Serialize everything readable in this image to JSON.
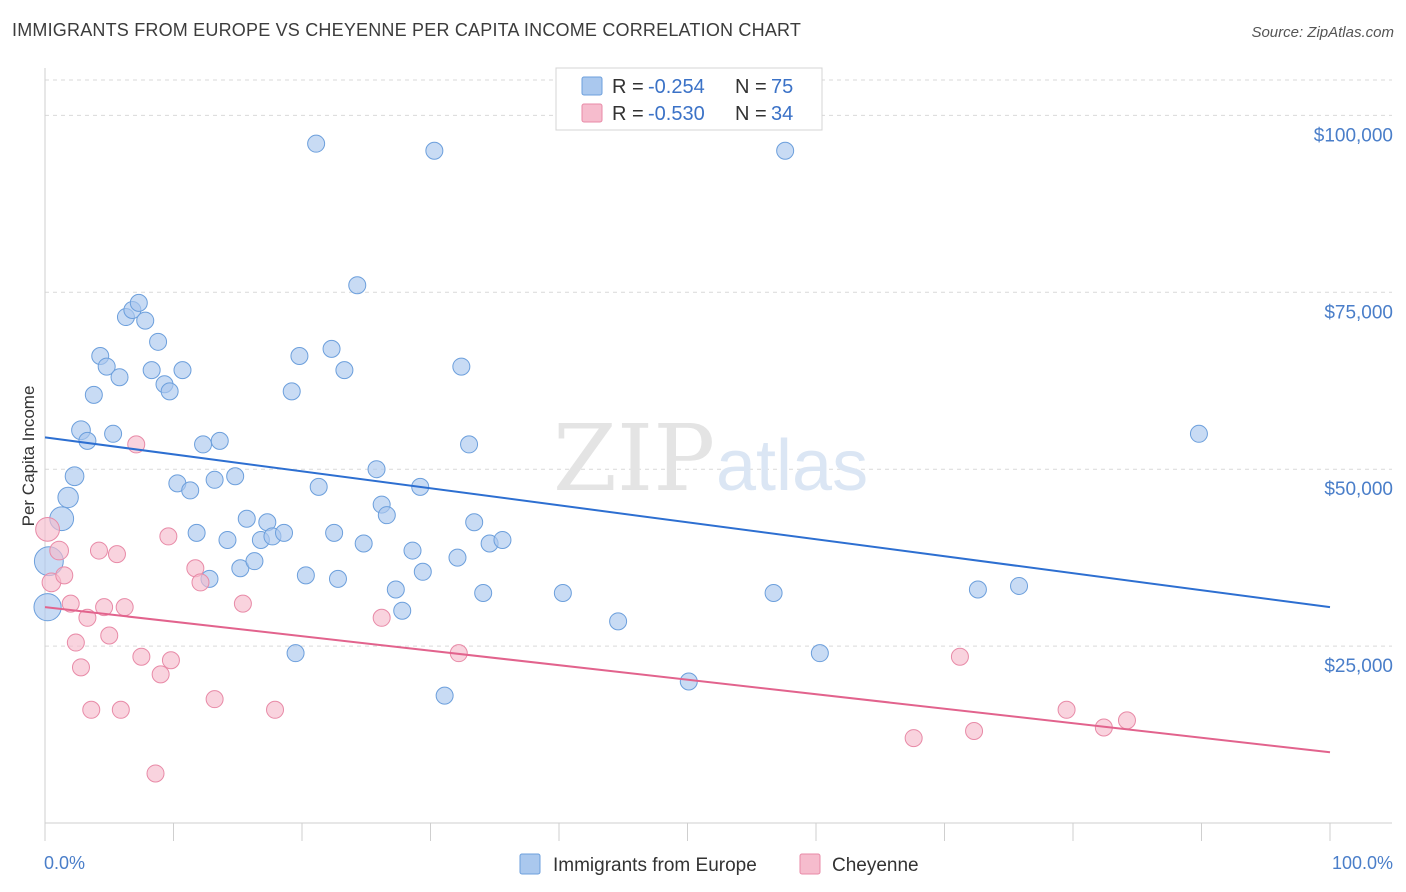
{
  "header": {
    "title": "IMMIGRANTS FROM EUROPE VS CHEYENNE PER CAPITA INCOME CORRELATION CHART",
    "source": "Source: ZipAtlas.com"
  },
  "watermark": {
    "zip": "ZIP",
    "atlas": "atlas"
  },
  "colors": {
    "blue_fill": "#aac8ee",
    "blue_stroke": "#6c9fdc",
    "blue_line": "#2d6fd1",
    "pink_fill": "#f6bccd",
    "pink_stroke": "#e88aa7",
    "pink_line": "#e2638d",
    "grid": "#d9d9d9",
    "axis_text": "#4a7ec9"
  },
  "legend_top": {
    "rows": [
      {
        "r_label": "R = ",
        "r_value": "-0.254",
        "n_label": "N = ",
        "n_value": "75"
      },
      {
        "r_label": "R = ",
        "r_value": "-0.530",
        "n_label": "N = ",
        "n_value": "34"
      }
    ]
  },
  "chart_data": {
    "type": "scatter",
    "title": "IMMIGRANTS FROM EUROPE VS CHEYENNE PER CAPITA INCOME CORRELATION CHART",
    "xlabel": "",
    "ylabel": "Per Capita Income",
    "xlim": [
      0,
      100
    ],
    "ylim": [
      0,
      105000
    ],
    "x_tick_labels": [
      "0.0%",
      "100.0%"
    ],
    "y_ticks": [
      25000,
      50000,
      75000,
      100000
    ],
    "y_tick_labels": [
      "$25,000",
      "$50,000",
      "$75,000",
      "$100,000"
    ],
    "grid": "horizontal dashed",
    "legend_placement": "bottom-center",
    "series": [
      {
        "name": "Immigrants from Europe",
        "color": "#aac8ee",
        "trend": {
          "x": [
            0,
            100
          ],
          "y": [
            54500,
            30500
          ]
        },
        "points": [
          [
            0.2,
            30500,
            1.6
          ],
          [
            0.3,
            37000,
            1.7
          ],
          [
            1.3,
            43000,
            1.4
          ],
          [
            1.8,
            46000,
            1.2
          ],
          [
            2.3,
            49000,
            1.1
          ],
          [
            2.8,
            55500,
            1.1
          ],
          [
            3.3,
            54000,
            1.0
          ],
          [
            3.8,
            60500,
            1.0
          ],
          [
            4.3,
            66000,
            1.0
          ],
          [
            4.8,
            64500,
            1.0
          ],
          [
            5.3,
            55000,
            1.0
          ],
          [
            5.8,
            63000,
            1.0
          ],
          [
            6.3,
            71500,
            1.0
          ],
          [
            6.8,
            72500,
            1.0
          ],
          [
            7.3,
            73500,
            1.0
          ],
          [
            7.8,
            71000,
            1.0
          ],
          [
            8.3,
            64000,
            1.0
          ],
          [
            8.8,
            68000,
            1.0
          ],
          [
            9.3,
            62000,
            1.0
          ],
          [
            9.7,
            61000,
            1.0
          ],
          [
            10.3,
            48000,
            1.0
          ],
          [
            10.7,
            64000,
            1.0
          ],
          [
            11.3,
            47000,
            1.0
          ],
          [
            11.8,
            41000,
            1.0
          ],
          [
            12.3,
            53500,
            1.0
          ],
          [
            12.8,
            34500,
            1.0
          ],
          [
            13.2,
            48500,
            1.0
          ],
          [
            13.6,
            54000,
            1.0
          ],
          [
            14.2,
            40000,
            1.0
          ],
          [
            14.8,
            49000,
            1.0
          ],
          [
            15.2,
            36000,
            1.0
          ],
          [
            15.7,
            43000,
            1.0
          ],
          [
            16.3,
            37000,
            1.0
          ],
          [
            16.8,
            40000,
            1.0
          ],
          [
            17.3,
            42500,
            1.0
          ],
          [
            17.7,
            40500,
            1.0
          ],
          [
            18.6,
            41000,
            1.0
          ],
          [
            19.2,
            61000,
            1.0
          ],
          [
            19.5,
            24000,
            1.0
          ],
          [
            19.8,
            66000,
            1.0
          ],
          [
            20.3,
            35000,
            1.0
          ],
          [
            21.1,
            96000,
            1.0
          ],
          [
            21.3,
            47500,
            1.0
          ],
          [
            22.3,
            67000,
            1.0
          ],
          [
            22.5,
            41000,
            1.0
          ],
          [
            22.8,
            34500,
            1.0
          ],
          [
            23.3,
            64000,
            1.0
          ],
          [
            24.3,
            76000,
            1.0
          ],
          [
            24.8,
            39500,
            1.0
          ],
          [
            25.8,
            50000,
            1.0
          ],
          [
            26.2,
            45000,
            1.0
          ],
          [
            26.6,
            43500,
            1.0
          ],
          [
            27.3,
            33000,
            1.0
          ],
          [
            27.8,
            30000,
            1.0
          ],
          [
            28.6,
            38500,
            1.0
          ],
          [
            29.2,
            47500,
            1.0
          ],
          [
            29.4,
            35500,
            1.0
          ],
          [
            30.3,
            95000,
            1.0
          ],
          [
            31.1,
            18000,
            1.0
          ],
          [
            32.1,
            37500,
            1.0
          ],
          [
            32.4,
            64500,
            1.0
          ],
          [
            33.0,
            53500,
            1.0
          ],
          [
            33.4,
            42500,
            1.0
          ],
          [
            34.1,
            32500,
            1.0
          ],
          [
            34.6,
            39500,
            1.0
          ],
          [
            35.6,
            40000,
            1.0
          ],
          [
            40.3,
            32500,
            1.0
          ],
          [
            44.6,
            28500,
            1.0
          ],
          [
            50.1,
            20000,
            1.0
          ],
          [
            56.7,
            32500,
            1.0
          ],
          [
            60.3,
            24000,
            1.0
          ],
          [
            72.6,
            33000,
            1.0
          ],
          [
            75.8,
            33500,
            1.0
          ],
          [
            57.6,
            95000,
            1.0
          ],
          [
            89.8,
            55000,
            1.0
          ]
        ]
      },
      {
        "name": "Cheyenne",
        "color": "#f6bccd",
        "trend": {
          "x": [
            0,
            100
          ],
          "y": [
            30500,
            10000
          ]
        },
        "points": [
          [
            0.2,
            41500,
            1.4
          ],
          [
            0.5,
            34000,
            1.1
          ],
          [
            1.1,
            38500,
            1.1
          ],
          [
            1.5,
            35000,
            1.0
          ],
          [
            2.0,
            31000,
            1.0
          ],
          [
            2.4,
            25500,
            1.0
          ],
          [
            2.8,
            22000,
            1.0
          ],
          [
            3.3,
            29000,
            1.0
          ],
          [
            3.6,
            16000,
            1.0
          ],
          [
            4.2,
            38500,
            1.0
          ],
          [
            4.6,
            30500,
            1.0
          ],
          [
            5.0,
            26500,
            1.0
          ],
          [
            5.6,
            38000,
            1.0
          ],
          [
            5.9,
            16000,
            1.0
          ],
          [
            6.2,
            30500,
            1.0
          ],
          [
            7.1,
            53500,
            1.0
          ],
          [
            7.5,
            23500,
            1.0
          ],
          [
            8.6,
            7000,
            1.0
          ],
          [
            9.0,
            21000,
            1.0
          ],
          [
            9.6,
            40500,
            1.0
          ],
          [
            9.8,
            23000,
            1.0
          ],
          [
            11.7,
            36000,
            1.0
          ],
          [
            12.1,
            34000,
            1.0
          ],
          [
            13.2,
            17500,
            1.0
          ],
          [
            15.4,
            31000,
            1.0
          ],
          [
            17.9,
            16000,
            1.0
          ],
          [
            26.2,
            29000,
            1.0
          ],
          [
            32.2,
            24000,
            1.0
          ],
          [
            67.6,
            12000,
            1.0
          ],
          [
            71.2,
            23500,
            1.0
          ],
          [
            72.3,
            13000,
            1.0
          ],
          [
            79.5,
            16000,
            1.0
          ],
          [
            82.4,
            13500,
            1.0
          ],
          [
            84.2,
            14500,
            1.0
          ]
        ]
      }
    ]
  }
}
